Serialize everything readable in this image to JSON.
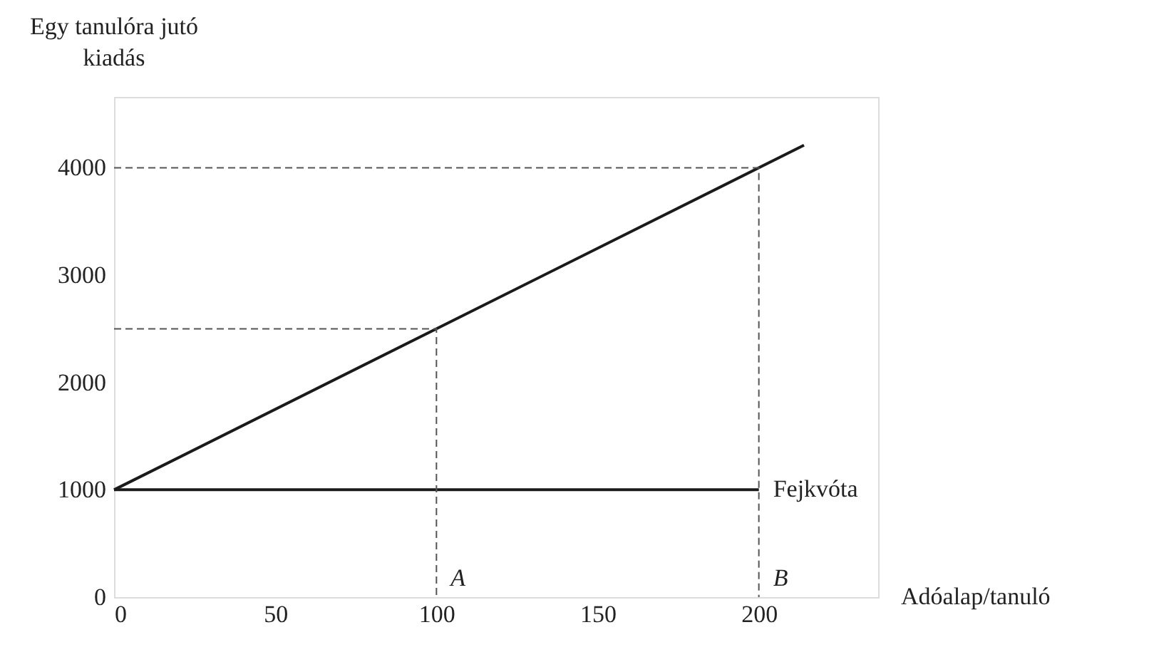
{
  "chart_data": {
    "type": "line",
    "xlabel": "Adóalap/tanuló",
    "ylabel": "Egy tanulóra jutó kiadás",
    "xlim": [
      0,
      237
    ],
    "ylim": [
      0,
      4660
    ],
    "xticks": [
      0,
      50,
      100,
      150,
      200
    ],
    "yticks": [
      0,
      1000,
      2000,
      3000,
      4000
    ],
    "grid": false,
    "marker": "none",
    "series": [
      {
        "color": "#1a1a1a",
        "x": [
          0,
          214
        ],
        "values": [
          1000,
          4210
        ],
        "line_style": "solid"
      },
      {
        "name": "Fejkvóta",
        "color": "#1a1a1a",
        "x": [
          0,
          200
        ],
        "values": [
          1000,
          1000
        ],
        "line_style": "solid"
      },
      {
        "color": "#555555",
        "x": [
          0,
          100,
          100
        ],
        "values": [
          2500,
          2500,
          0
        ],
        "line_style": "dashed"
      },
      {
        "color": "#555555",
        "x": [
          0,
          200,
          200
        ],
        "values": [
          4000,
          4000,
          0
        ],
        "line_style": "dashed"
      }
    ],
    "annotations": [
      {
        "text": "A",
        "x": 100,
        "y": 0
      },
      {
        "text": "B",
        "x": 200,
        "y": 0
      }
    ]
  }
}
